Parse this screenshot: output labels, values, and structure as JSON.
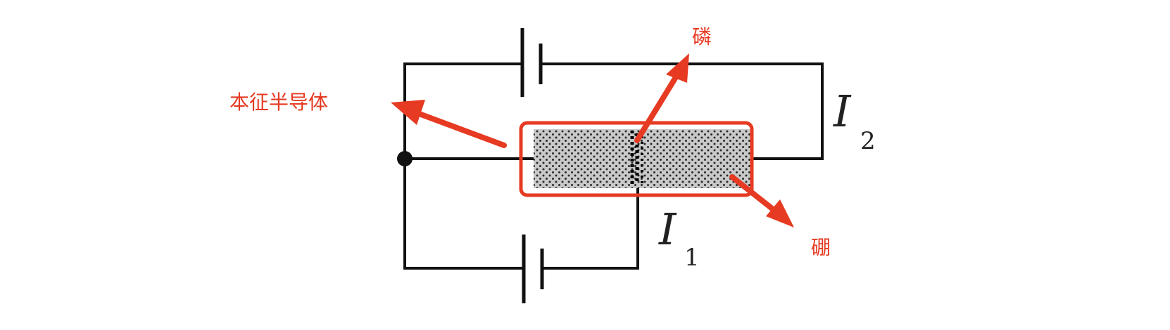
{
  "labels": {
    "current_1": "I",
    "current_1_sub": "1",
    "current_2": "I",
    "current_2_sub": "2"
  },
  "annotations": {
    "intrinsic": "本征半导体",
    "phosphorus": "磷",
    "boron": "硼"
  },
  "colors": {
    "wire": "#111111",
    "annotation": "#e63a22",
    "semiconductor_fill": "#c9c9c9",
    "dopant_dots": "#2a2a2a",
    "phosphorus_dots": "#000000"
  },
  "icons": {
    "battery_top": "battery-icon",
    "battery_bottom": "battery-icon"
  }
}
